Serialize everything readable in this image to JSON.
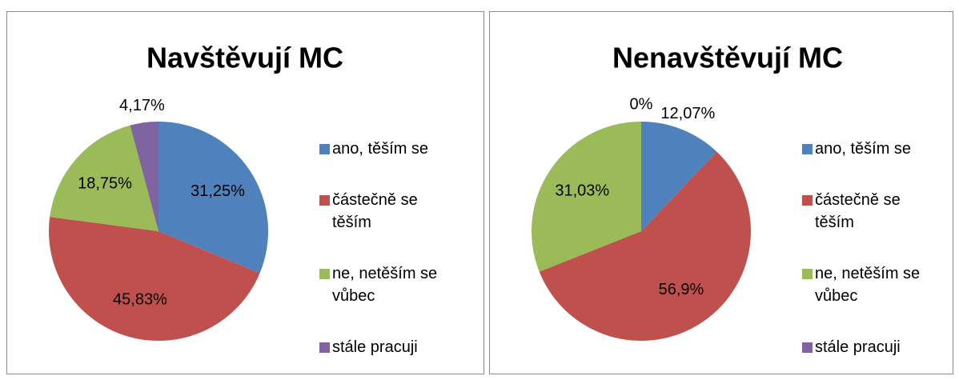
{
  "chart_data": [
    {
      "type": "pie",
      "title": "Navštěvují MC",
      "categories": [
        "ano, těším se",
        "částečně se těším",
        "ne, netěším se vůbec",
        "stále pracuji"
      ],
      "values": [
        31.25,
        45.83,
        18.75,
        4.17
      ],
      "value_labels": [
        "31,25%",
        "45,83%",
        "18,75%",
        "4,17%"
      ],
      "colors": [
        "#4f81bd",
        "#c0504d",
        "#9bbb59",
        "#8064a2"
      ],
      "legend": "right"
    },
    {
      "type": "pie",
      "title": "Nenavštěvují MC",
      "categories": [
        "ano, těším se",
        "částečně se těším",
        "ne, netěším se vůbec",
        "stále pracuji"
      ],
      "values": [
        12.07,
        56.9,
        31.03,
        0
      ],
      "value_labels": [
        "12,07%",
        "56,9%",
        "31,03%",
        "0%"
      ],
      "colors": [
        "#4f81bd",
        "#c0504d",
        "#9bbb59",
        "#8064a2"
      ],
      "legend": "right"
    }
  ]
}
